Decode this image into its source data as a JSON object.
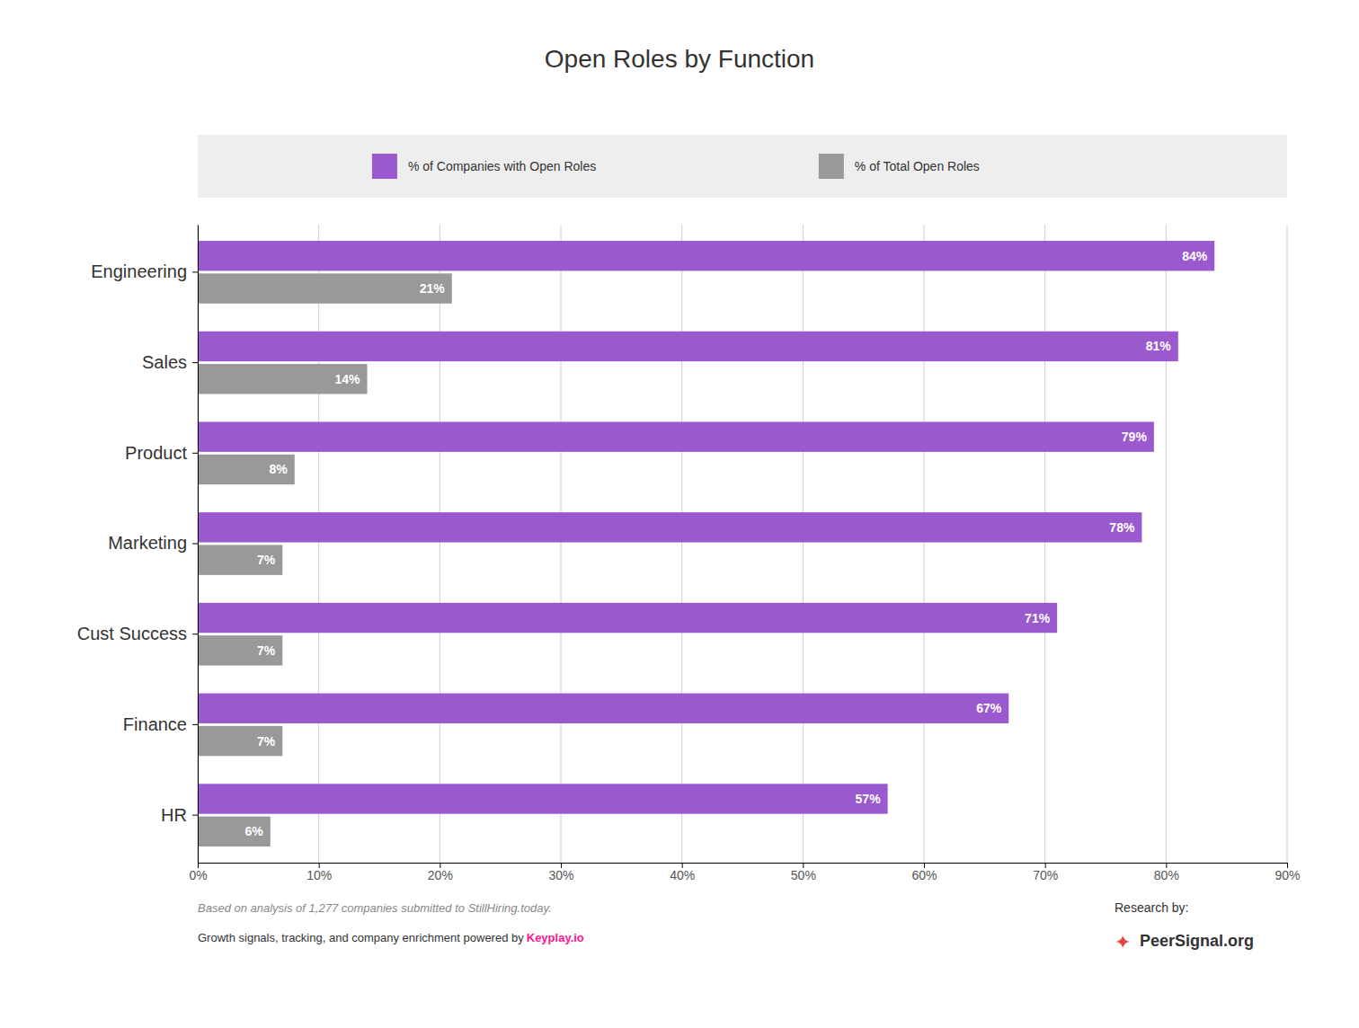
{
  "chart_data": {
    "type": "bar",
    "orientation": "horizontal",
    "title": "Open Roles by Function",
    "categories": [
      "Engineering",
      "Sales",
      "Product",
      "Marketing",
      "Cust Success",
      "Finance",
      "HR"
    ],
    "series": [
      {
        "name": "% of Companies with Open Roles",
        "color": "#9b59d0",
        "values": [
          84,
          81,
          79,
          78,
          71,
          67,
          57
        ],
        "value_labels": [
          "84%",
          "81%",
          "79%",
          "78%",
          "71%",
          "67%",
          "57%"
        ]
      },
      {
        "name": "% of Total Open Roles",
        "color": "#999999",
        "values": [
          21,
          14,
          8,
          7,
          7,
          7,
          6
        ],
        "value_labels": [
          "21%",
          "14%",
          "8%",
          "7%",
          "7%",
          "7%",
          "6%"
        ]
      }
    ],
    "xlim": [
      0,
      90
    ],
    "xticks": [
      {
        "value": 0,
        "label": "0%"
      },
      {
        "value": 10,
        "label": "10%"
      },
      {
        "value": 20,
        "label": "20%"
      },
      {
        "value": 30,
        "label": "30%"
      },
      {
        "value": 40,
        "label": "40%"
      },
      {
        "value": 50,
        "label": "50%"
      },
      {
        "value": 60,
        "label": "60%"
      },
      {
        "value": 70,
        "label": "70%"
      },
      {
        "value": 80,
        "label": "80%"
      },
      {
        "value": 90,
        "label": "90%"
      }
    ],
    "grid": true,
    "data_labels": true,
    "annotations": [
      "Based on analysis of 1,277 companies submitted to StillHiring.today.",
      "Growth signals, tracking, and company enrichment powered by ",
      "Keyplay.io",
      "Research by:",
      "PeerSignal.org",
      "✦"
    ]
  }
}
